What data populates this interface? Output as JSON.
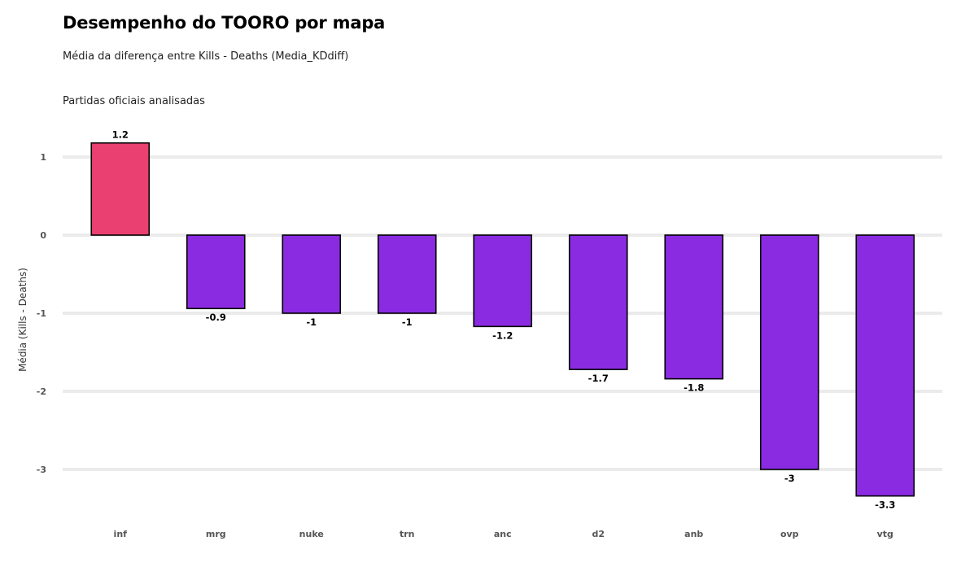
{
  "header": {
    "title": "Desempenho do TOORO por mapa",
    "subtitle": "Média da diferença entre Kills - Deaths (Media_KDdiff)",
    "caption": "Partidas oficiais analisadas"
  },
  "chart_data": {
    "type": "bar",
    "title": "Desempenho do TOORO por mapa",
    "subtitle": "Média da diferença entre Kills - Deaths (Media_KDdiff)",
    "xlabel": "",
    "ylabel": "Média (Kills - Deaths)",
    "categories": [
      "inf",
      "mrg",
      "nuke",
      "trn",
      "anc",
      "d2",
      "anb",
      "ovp",
      "vtg"
    ],
    "values": [
      1.18,
      -0.94,
      -1.0,
      -1.0,
      -1.17,
      -1.72,
      -1.84,
      -3.0,
      -3.34
    ],
    "value_labels": [
      "1.2",
      "-0.9",
      "-1",
      "-1",
      "-1.2",
      "-1.7",
      "-1.8",
      "-3",
      "-3.3"
    ],
    "yticks": [
      1,
      0,
      -1,
      -2,
      -3
    ],
    "ytick_labels": [
      "1",
      "0",
      "-1",
      "-2",
      "-3"
    ],
    "ylim": [
      -3.45,
      1.25
    ],
    "grid": true,
    "legend": "none",
    "colors": {
      "positive": "#EA3F71",
      "negative": "#8A2BE2",
      "outline": "#000000",
      "grid": "#EBEBEB"
    }
  }
}
